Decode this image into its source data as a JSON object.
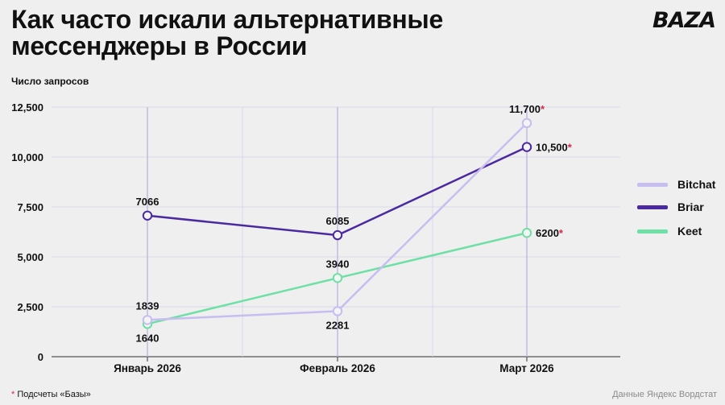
{
  "chart_data": {
    "type": "line",
    "title": "Как часто искали альтернативные мессенджеры в России",
    "ylabel": "Число запросов",
    "xlabel": "",
    "categories": [
      "Январь 2026",
      "Февраль 2026",
      "Март 2026"
    ],
    "ylim": [
      0,
      12500
    ],
    "yticks": [
      0,
      2500,
      5000,
      7500,
      10000,
      12500
    ],
    "ytick_labels": [
      "0",
      "2,500",
      "5,000",
      "7,500",
      "10,000",
      "12,500"
    ],
    "grid": true,
    "legend_position": "right",
    "series": [
      {
        "name": "Bitchat",
        "color": "#c7bdf0",
        "values": [
          1839,
          2281,
          11700
        ],
        "labels": [
          "1839",
          "2281",
          "11,700"
        ],
        "asterisk": [
          false,
          false,
          true
        ],
        "label_pos": [
          "above",
          "below",
          "above"
        ]
      },
      {
        "name": "Briar",
        "color": "#4b2aa1",
        "values": [
          7066,
          6085,
          10500
        ],
        "labels": [
          "7066",
          "6085",
          "10,500"
        ],
        "asterisk": [
          false,
          false,
          true
        ],
        "label_pos": [
          "above",
          "above",
          "right"
        ]
      },
      {
        "name": "Keet",
        "color": "#6ee0a5",
        "values": [
          1640,
          3940,
          6200
        ],
        "labels": [
          "1640",
          "3940",
          "6200"
        ],
        "asterisk": [
          false,
          false,
          true
        ],
        "label_pos": [
          "below",
          "above",
          "right"
        ]
      }
    ]
  },
  "header": {
    "title": "Как часто искали альтернативные мессенджеры в России",
    "logo": "BAZA"
  },
  "footer": {
    "asterisk": "*",
    "note": "Подсчеты «Базы»",
    "source": "Данные Яндекс Вордстат"
  },
  "colors": {
    "asterisk": "#d6284a",
    "grid": "#d9d8ea",
    "category_line": "#b9b3dc"
  }
}
